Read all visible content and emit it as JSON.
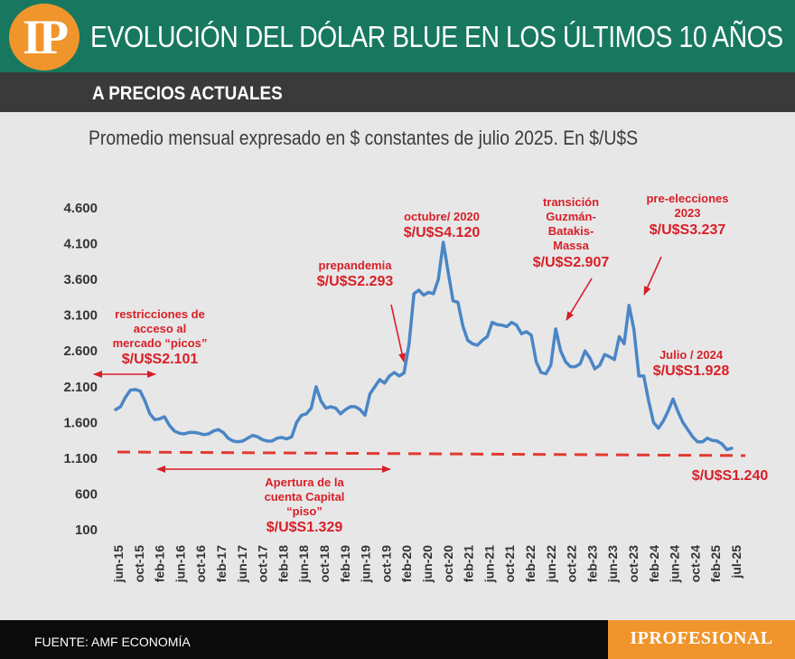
{
  "header": {
    "logo_text": "IP",
    "title": "EVOLUCIÓN DEL DÓLAR BLUE EN LOS ÚLTIMOS 10 AÑOS",
    "subtitle": "A PRECIOS ACTUALES",
    "description": "Promedio mensual expresado en $ constantes de julio 2025. En $/U$S"
  },
  "footer": {
    "source": "FUENTE: AMF ECONOMÍA",
    "brand": "IPROFESIONAL"
  },
  "colors": {
    "header_bg": "#17785f",
    "logo": "#f0952b",
    "line": "#4a86c5",
    "annotation": "#d81f26"
  },
  "annotations": [
    {
      "lines": [
        "restricciones de",
        "acceso al",
        "mercado “picos”"
      ],
      "value": "$/U$S2.101"
    },
    {
      "lines": [
        "prepandemia"
      ],
      "value": "$/U$S2.293"
    },
    {
      "lines": [
        "octubre/ 2020"
      ],
      "value": "$/U$S4.120"
    },
    {
      "lines": [
        "transición",
        "Guzmán-",
        "Batakis-",
        "Massa"
      ],
      "value": "$/U$S2.907"
    },
    {
      "lines": [
        "pre-elecciones",
        "2023"
      ],
      "value": "$/U$S3.237"
    },
    {
      "lines": [
        "Julio / 2024"
      ],
      "value": "$/U$S1.928"
    },
    {
      "lines": [],
      "value": "$/U$S1.240"
    },
    {
      "lines": [
        "Apertura de la",
        "cuenta Capital",
        "“piso”"
      ],
      "value": "$/U$S1.329"
    }
  ],
  "chart_data": {
    "type": "line",
    "title": "EVOLUCIÓN DEL DÓLAR BLUE EN LOS ÚLTIMOS 10 AÑOS",
    "subtitle": "Promedio mensual expresado en $ constantes de julio 2025. En $/U$S",
    "ylim": [
      100,
      4600
    ],
    "yticks": [
      100,
      600,
      1100,
      1600,
      2100,
      2600,
      3100,
      3600,
      4100,
      4600
    ],
    "ytick_labels": [
      "100",
      "600",
      "1.100",
      "1.600",
      "2.100",
      "2.600",
      "3.100",
      "3.600",
      "4.100",
      "4.600"
    ],
    "xtick_labels": [
      "jun-15",
      "oct-15",
      "feb-16",
      "jun-16",
      "oct-16",
      "feb-17",
      "jun-17",
      "oct-17",
      "feb-18",
      "jun-18",
      "oct-18",
      "feb-19",
      "jun-19",
      "oct-19",
      "feb-20",
      "jun-20",
      "oct-20",
      "feb-21",
      "jun-21",
      "oct-21",
      "feb-22",
      "jun-22",
      "oct-22",
      "feb-23",
      "jun-23",
      "oct-23",
      "feb-24",
      "jun-24",
      "oct-24",
      "feb-25",
      "jul-25"
    ],
    "grid": false,
    "series": [
      {
        "values": [
          1780,
          1820,
          1950,
          2050,
          2060,
          2040,
          1900,
          1720,
          1640,
          1650,
          1680,
          1560,
          1480,
          1450,
          1440,
          1460,
          1460,
          1450,
          1430,
          1440,
          1480,
          1500,
          1460,
          1380,
          1340,
          1330,
          1340,
          1380,
          1420,
          1400,
          1360,
          1340,
          1340,
          1380,
          1390,
          1370,
          1400,
          1600,
          1700,
          1720,
          1800,
          2100,
          1900,
          1800,
          1820,
          1800,
          1720,
          1780,
          1820,
          1820,
          1780,
          1700,
          2000,
          2100,
          2200,
          2150,
          2250,
          2300,
          2250,
          2293,
          2700,
          3400,
          3450,
          3380,
          3420,
          3400,
          3600,
          4120,
          3700,
          3300,
          3280,
          2950,
          2750,
          2700,
          2680,
          2750,
          2800,
          3000,
          2970,
          2960,
          2940,
          3000,
          2960,
          2840,
          2870,
          2820,
          2450,
          2300,
          2280,
          2400,
          2907,
          2600,
          2450,
          2380,
          2380,
          2420,
          2600,
          2500,
          2350,
          2400,
          2550,
          2520,
          2480,
          2800,
          2700,
          3237,
          2900,
          2250,
          2250,
          1900,
          1600,
          1520,
          1620,
          1760,
          1928,
          1750,
          1600,
          1500,
          1400,
          1330,
          1329,
          1380,
          1350,
          1340,
          1300,
          1220,
          1240
        ]
      },
      {
        "name": "piso",
        "values": [
          1200,
          1150
        ]
      }
    ]
  }
}
